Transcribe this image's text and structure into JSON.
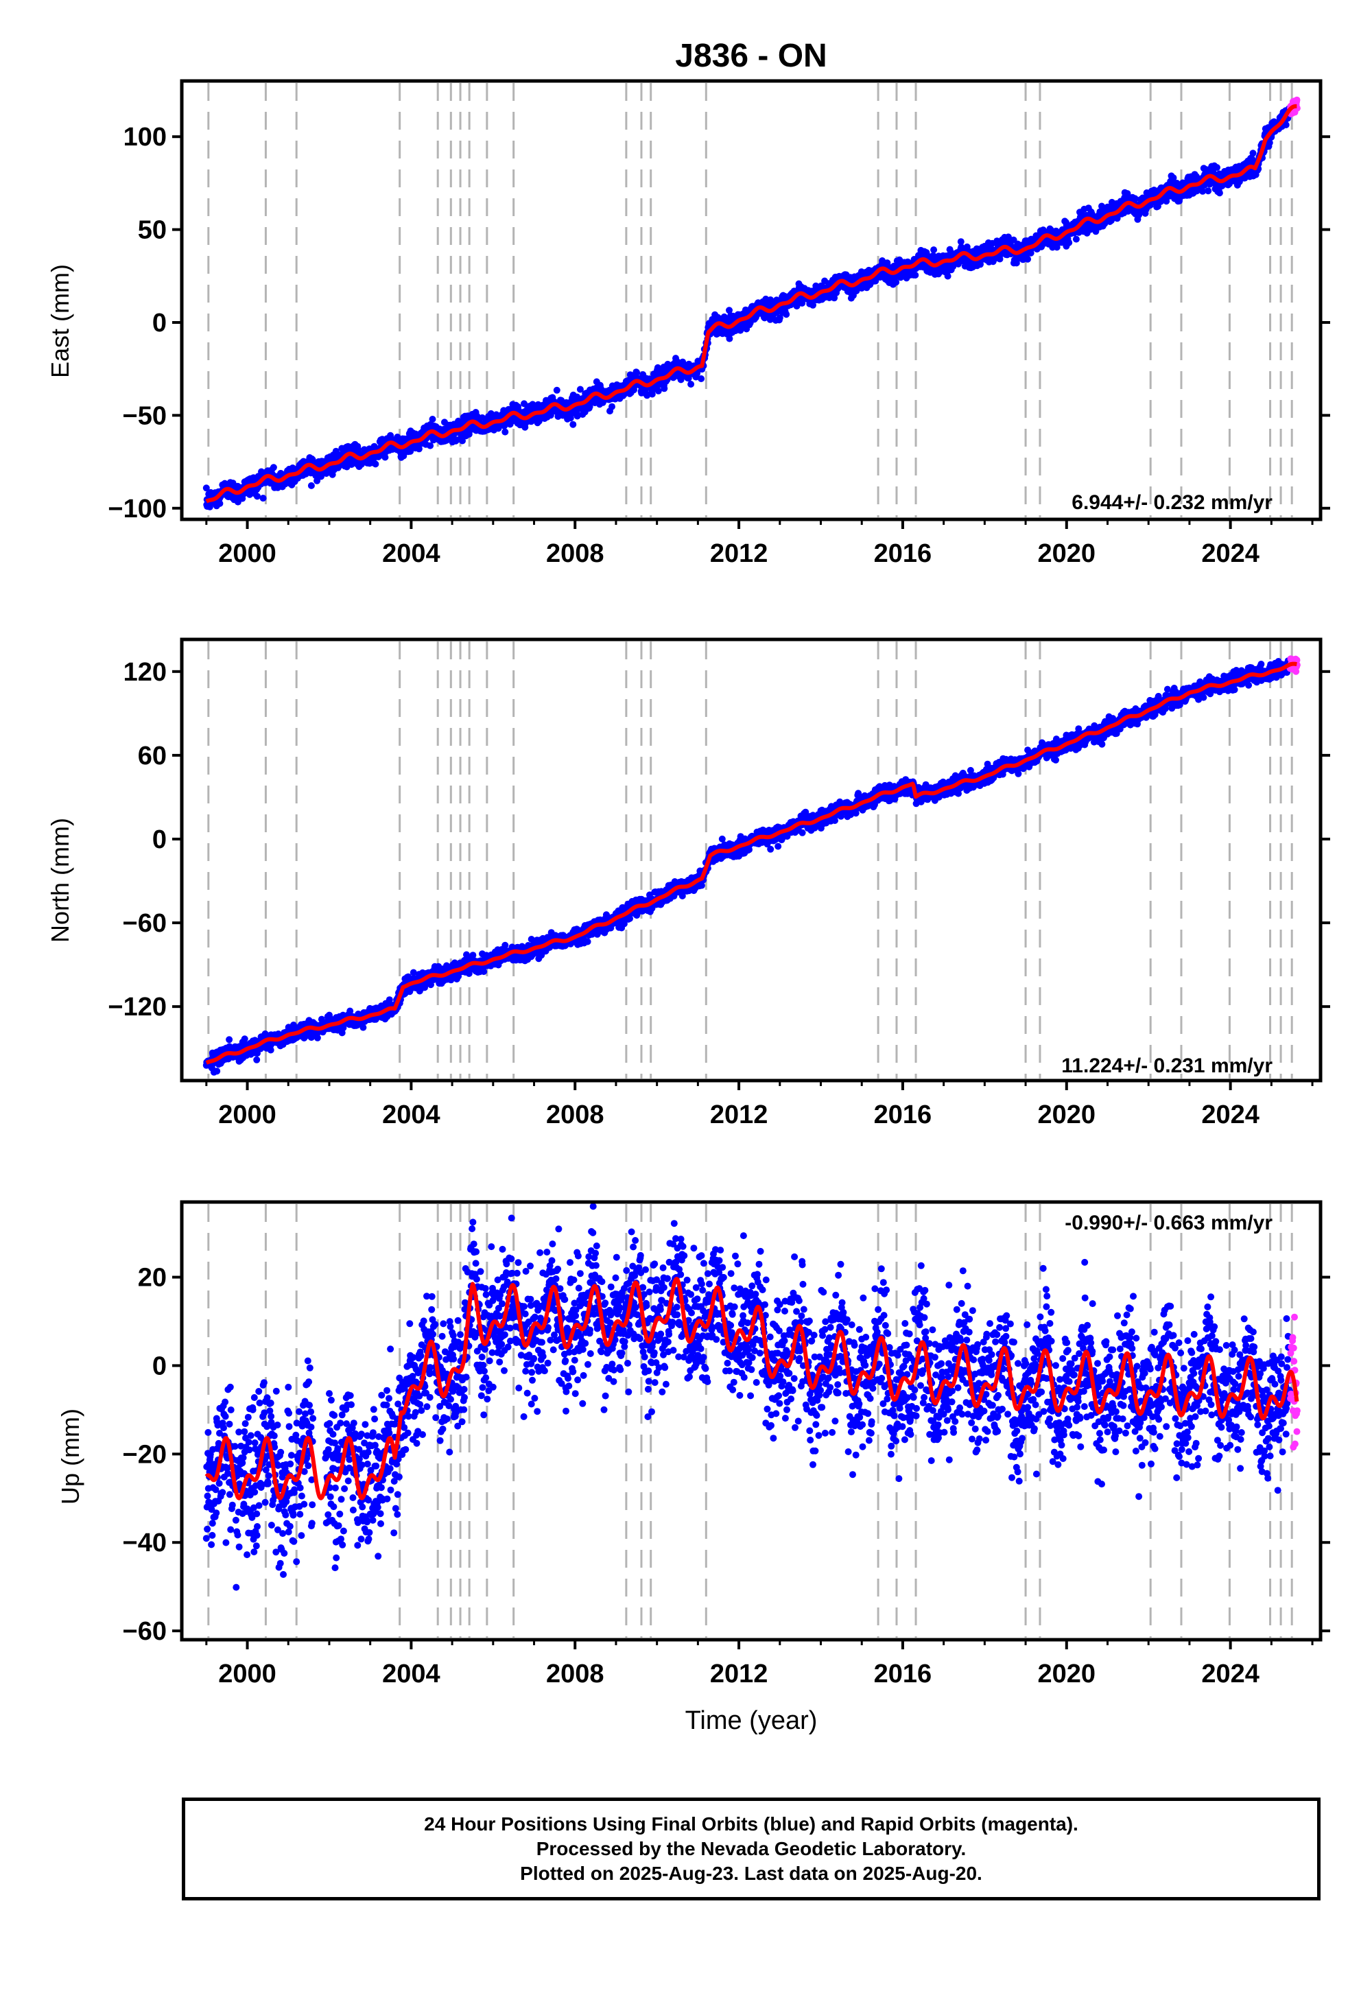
{
  "colors": {
    "final_orbits": "#0000ff",
    "rapid_orbits": "#ff33ff",
    "model": "#ff0000",
    "event_lines": "#b4b4b4",
    "frame": "#000000"
  },
  "footer": {
    "line1": "24 Hour Positions Using Final Orbits (blue) and Rapid Orbits (magenta).",
    "line2": "Processed by the Nevada Geodetic Laboratory.",
    "line3": "Plotted on 2025-Aug-23. Last data on 2025-Aug-20."
  },
  "chart_data": [
    {
      "type": "scatter",
      "component": "east",
      "title": "J836 - ON",
      "ylabel": "East (mm)",
      "xlabel": "",
      "xlim": [
        1998.4,
        2026.2
      ],
      "ylim": [
        -106,
        130
      ],
      "xticks": [
        2000,
        2004,
        2008,
        2012,
        2016,
        2020,
        2024
      ],
      "xtick_labels": [
        "2000",
        "2004",
        "2008",
        "2012",
        "2016",
        "2020",
        "2024"
      ],
      "yticks": [
        -100,
        -50,
        0,
        50,
        100
      ],
      "ytick_labels": [
        "−100",
        "−50",
        "0",
        "50",
        "100"
      ],
      "rate_label": "6.944+/- 0.232 mm/yr",
      "rate_position": "bottom-right",
      "data_start": 1999.0,
      "data_end": 2025.63,
      "rapid_start": 2025.45,
      "noise_mm": 2.6,
      "seasonal_mm": 2.5,
      "trend_knots": {
        "x": [
          1999.0,
          2000.0,
          2001.0,
          2003.0,
          2005.0,
          2008.0,
          2011.1,
          2011.25,
          2013.0,
          2016.0,
          2019.0,
          2021.0,
          2023.0,
          2024.6,
          2024.85,
          2025.63
        ],
        "y": [
          -96,
          -88,
          -82,
          -70,
          -58,
          -44,
          -23,
          -5,
          10,
          30,
          40,
          58,
          74,
          82,
          100,
          116
        ]
      }
    },
    {
      "type": "scatter",
      "component": "north",
      "title": "",
      "ylabel": "North (mm)",
      "xlabel": "",
      "xlim": [
        1998.4,
        2026.2
      ],
      "ylim": [
        -173,
        143
      ],
      "xticks": [
        2000,
        2004,
        2008,
        2012,
        2016,
        2020,
        2024
      ],
      "xtick_labels": [
        "2000",
        "2004",
        "2008",
        "2012",
        "2016",
        "2020",
        "2024"
      ],
      "yticks": [
        -120,
        -60,
        0,
        60,
        120
      ],
      "ytick_labels": [
        "−120",
        "−60",
        "0",
        "60",
        "120"
      ],
      "rate_label": "11.224+/- 0.231 mm/yr",
      "rate_position": "bottom-right",
      "data_start": 1999.0,
      "data_end": 2025.63,
      "rapid_start": 2025.45,
      "noise_mm": 2.8,
      "seasonal_mm": 1.5,
      "trend_knots": {
        "x": [
          1999.0,
          2001.0,
          2003.6,
          2003.8,
          2006.0,
          2008.0,
          2011.1,
          2011.3,
          2014.0,
          2016.25,
          2016.32,
          2018.0,
          2021.0,
          2023.0,
          2025.63
        ],
        "y": [
          -160,
          -140,
          -122,
          -105,
          -86,
          -70,
          -28,
          -12,
          15,
          40,
          30,
          45,
          80,
          105,
          125
        ]
      }
    },
    {
      "type": "scatter",
      "component": "up",
      "title": "",
      "ylabel": "Up (mm)",
      "xlabel": "Time (year)",
      "xlim": [
        1998.4,
        2026.2
      ],
      "ylim": [
        -62,
        37
      ],
      "xticks": [
        2000,
        2004,
        2008,
        2012,
        2016,
        2020,
        2024
      ],
      "xtick_labels": [
        "2000",
        "2004",
        "2008",
        "2012",
        "2016",
        "2020",
        "2024"
      ],
      "yticks": [
        -60,
        -40,
        -20,
        0,
        20
      ],
      "ytick_labels": [
        "−60",
        "−40",
        "−20",
        "0",
        "20"
      ],
      "rate_label": "-0.990+/- 0.663 mm/yr",
      "rate_position": "top-right",
      "data_start": 1999.0,
      "data_end": 2025.63,
      "rapid_start": 2025.45,
      "noise_mm": 7.0,
      "seasonal_mm": 8.0,
      "trend_knots": {
        "x": [
          1999.0,
          2003.6,
          2003.75,
          2005.3,
          2005.5,
          2008.0,
          2010.5,
          2012.0,
          2013.0,
          2016.0,
          2019.0,
          2022.0,
          2025.0,
          2025.63
        ],
        "y": [
          -24,
          -24,
          -5,
          1,
          11,
          10,
          12,
          9,
          2,
          -2,
          -4,
          -5,
          -6,
          -10
        ]
      }
    }
  ],
  "event_lines_years": [
    1999.05,
    2000.45,
    2001.2,
    2003.72,
    2004.65,
    2004.97,
    2005.2,
    2005.42,
    2005.85,
    2006.5,
    2009.25,
    2009.62,
    2009.85,
    2011.2,
    2015.4,
    2015.85,
    2016.32,
    2019.0,
    2019.35,
    2022.05,
    2022.8,
    2023.98,
    2024.97,
    2025.23,
    2025.5
  ]
}
